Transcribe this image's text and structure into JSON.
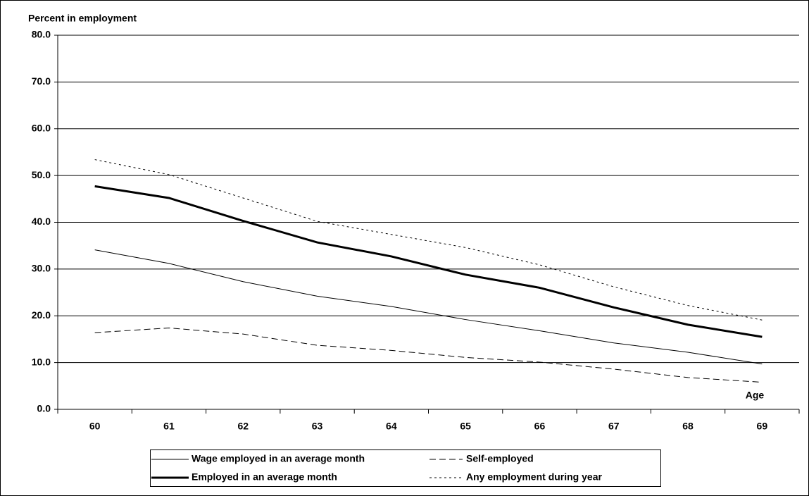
{
  "chart_data": {
    "type": "line",
    "title": "Percent in employment",
    "x_label": "Age",
    "categories": [
      "60",
      "61",
      "62",
      "63",
      "64",
      "65",
      "66",
      "67",
      "68",
      "69"
    ],
    "series": [
      {
        "name": "Wage employed in an average month",
        "color": "#000000",
        "line_style": "thin",
        "values": [
          34.1,
          31.2,
          27.3,
          24.2,
          22.0,
          19.2,
          16.8,
          14.2,
          12.2,
          9.7
        ]
      },
      {
        "name": "Self-employed",
        "color": "#000000",
        "line_style": "dashed",
        "values": [
          16.4,
          17.4,
          16.1,
          13.7,
          12.6,
          11.1,
          10.1,
          8.6,
          6.8,
          5.8
        ]
      },
      {
        "name": "Employed in an average month",
        "color": "#000000",
        "line_style": "thick",
        "values": [
          47.7,
          45.2,
          40.3,
          35.7,
          32.7,
          28.8,
          26.0,
          21.8,
          18.1,
          15.5
        ]
      },
      {
        "name": "Any employment during year",
        "color": "#000000",
        "line_style": "dotted",
        "values": [
          53.4,
          50.2,
          45.2,
          40.2,
          37.4,
          34.6,
          30.9,
          26.2,
          22.2,
          19.1
        ]
      }
    ],
    "ylim": [
      0,
      80
    ],
    "yticks": [
      {
        "value": 0,
        "label": "0.0"
      },
      {
        "value": 10,
        "label": "10.0"
      },
      {
        "value": 20,
        "label": "20.0"
      },
      {
        "value": 30,
        "label": "30.0"
      },
      {
        "value": 40,
        "label": "40.0"
      },
      {
        "value": 50,
        "label": "50.0"
      },
      {
        "value": 60,
        "label": "60.0"
      },
      {
        "value": 70,
        "label": "70.0"
      },
      {
        "value": 80,
        "label": "80.0"
      }
    ],
    "grid": true,
    "legend": "bottom"
  }
}
